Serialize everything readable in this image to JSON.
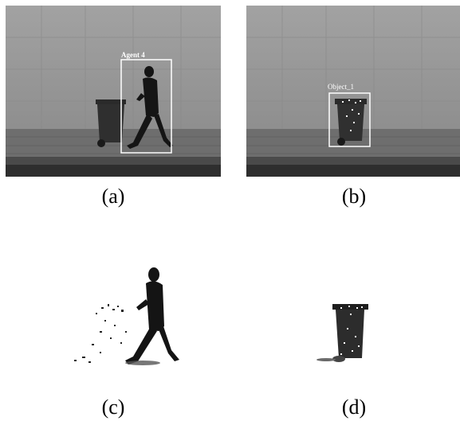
{
  "panels": [
    {
      "caption": "(a)",
      "box_label": "Agent 4"
    },
    {
      "caption": "(b)",
      "box_label": "Object_1"
    },
    {
      "caption": "(c)"
    },
    {
      "caption": "(d)"
    }
  ],
  "colors": {
    "wall": "#9a9a9a",
    "wall_lines": "#8c8c8c",
    "pavement": "#6b6b6b",
    "curb": "#3a3a3a",
    "silhouette": "#1a1a1a",
    "bin": "#2f2f2f",
    "bounding_box": "#ffffff"
  }
}
